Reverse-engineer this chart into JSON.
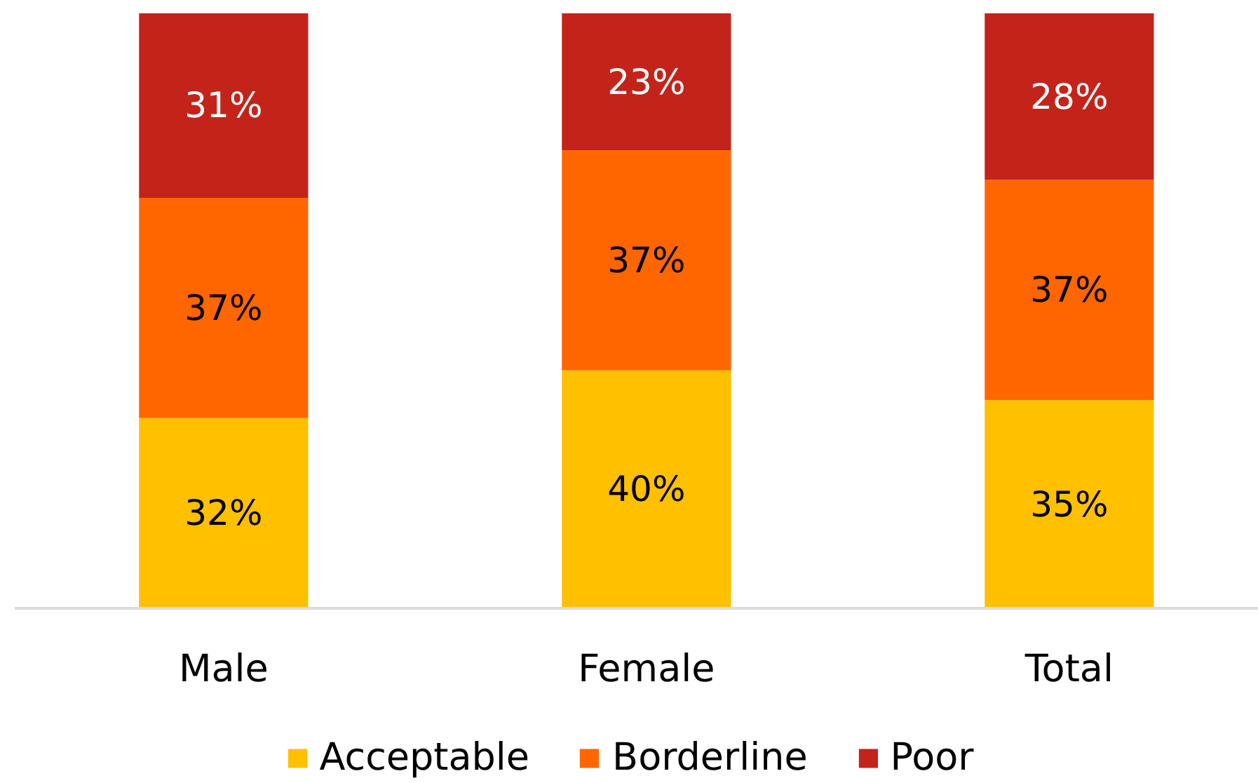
{
  "chart_data": {
    "type": "bar",
    "stacked": true,
    "categories": [
      "Male",
      "Female",
      "Total"
    ],
    "ylim": [
      0,
      100
    ],
    "tick_labels": "x",
    "legend": "bottom",
    "series": [
      {
        "name": "Acceptable",
        "color": "#ffc000",
        "values": [
          32,
          40,
          35
        ],
        "value_labels": [
          "32%",
          "40%",
          "35%"
        ]
      },
      {
        "name": "Borderline",
        "color": "#ff6600",
        "values": [
          37,
          37,
          37
        ],
        "value_labels": [
          "37%",
          "37%",
          "37%"
        ]
      },
      {
        "name": "Poor",
        "color": "#c4231a",
        "values": [
          31,
          23,
          28
        ],
        "value_labels": [
          "31%",
          "23%",
          "28%"
        ]
      }
    ]
  }
}
